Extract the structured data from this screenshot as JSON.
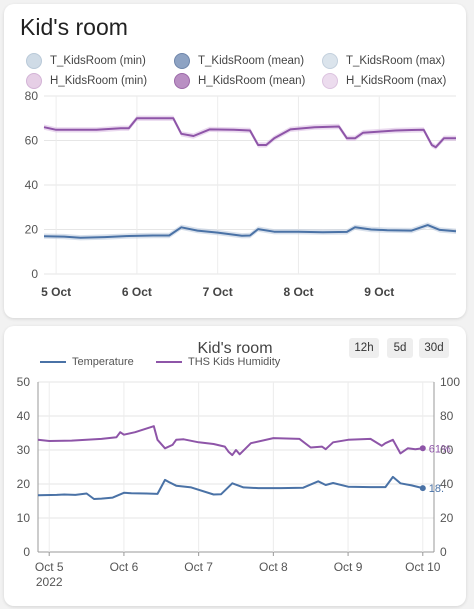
{
  "card1": {
    "title": "Kid's room",
    "legend": [
      {
        "label": "T_KidsRoom (min)",
        "color": "#cfdbe6",
        "border": "#b9c9d8"
      },
      {
        "label": "T_KidsRoom (mean)",
        "color": "#8ea3c3",
        "border": "#6f86aa"
      },
      {
        "label": "T_KidsRoom (max)",
        "color": "#dbe4ec",
        "border": "#c3d0dd"
      },
      {
        "label": "H_KidsRoom (min)",
        "color": "#e6cfe6",
        "border": "#d3b3d6"
      },
      {
        "label": "H_KidsRoom (mean)",
        "color": "#b98fc3",
        "border": "#9c6aa8"
      },
      {
        "label": "H_KidsRoom (max)",
        "color": "#ecdcee",
        "border": "#dcc3df"
      }
    ]
  },
  "card2": {
    "title": "Kid's room",
    "buttons": [
      "12h",
      "5d",
      "30d"
    ],
    "legend": [
      {
        "label": "Temperature",
        "color": "#4a72a6"
      },
      {
        "label": "THS Kids Humidity",
        "color": "#8e55a8"
      }
    ],
    "last_temperature": "18.",
    "last_humidity": "61%"
  },
  "chart_data": [
    {
      "type": "line",
      "x_ticks": [
        "5 Oct",
        "6 Oct",
        "7 Oct",
        "8 Oct",
        "9 Oct"
      ],
      "xlim": [
        4.85,
        9.95
      ],
      "ylim": [
        0,
        80
      ],
      "y_ticks": [
        0,
        20,
        40,
        60,
        80
      ],
      "grid": true,
      "legend_position": "top",
      "series": [
        {
          "name": "T_KidsRoom (mean)",
          "color": "#4a72a6",
          "x": [
            4.85,
            5.1,
            5.3,
            5.6,
            5.9,
            6.2,
            6.4,
            6.55,
            6.75,
            7.0,
            7.3,
            7.4,
            7.5,
            7.7,
            8.0,
            8.3,
            8.6,
            8.7,
            8.9,
            9.1,
            9.4,
            9.6,
            9.75,
            9.95
          ],
          "y": [
            17,
            16.8,
            16.3,
            16.6,
            17.1,
            17.3,
            17.3,
            21,
            19.5,
            18.6,
            17.2,
            17.3,
            20.2,
            19,
            19,
            18.8,
            18.9,
            21,
            20,
            19.7,
            19.5,
            22,
            19.8,
            19.2
          ]
        },
        {
          "name": "H_KidsRoom (mean)",
          "color": "#8e55a8",
          "x": [
            4.85,
            5.0,
            5.2,
            5.5,
            5.8,
            5.9,
            6.0,
            6.2,
            6.35,
            6.4,
            6.45,
            6.55,
            6.7,
            6.9,
            7.2,
            7.4,
            7.5,
            7.6,
            7.7,
            7.9,
            8.2,
            8.5,
            8.6,
            8.7,
            8.8,
            9.0,
            9.2,
            9.4,
            9.55,
            9.65,
            9.7,
            9.8,
            9.9,
            9.95
          ],
          "y": [
            66,
            64.8,
            64.8,
            64.8,
            65.5,
            65.5,
            70,
            70,
            70,
            70,
            70,
            63,
            62,
            65,
            64.8,
            64.5,
            58,
            58,
            61,
            65,
            66,
            66.3,
            61,
            61,
            63.5,
            64,
            64.5,
            64.7,
            64.8,
            58,
            57,
            61,
            61,
            61
          ]
        }
      ]
    },
    {
      "type": "line",
      "x_ticks": [
        "Oct 5",
        "Oct 6",
        "Oct 7",
        "Oct 8",
        "Oct 9",
        "Oct 10"
      ],
      "x_subtick": "2022",
      "xlim": [
        4.85,
        10.15
      ],
      "ylim": [
        0,
        50
      ],
      "y_ticks": [
        0,
        10,
        20,
        30,
        40,
        50
      ],
      "y2lim": [
        0,
        100
      ],
      "y2_ticks": [
        0,
        20,
        40,
        60,
        80,
        100
      ],
      "grid": true,
      "legend_position": "top-left",
      "series": [
        {
          "name": "Temperature",
          "color": "#4a72a6",
          "axis": "left",
          "x": [
            4.85,
            5.1,
            5.2,
            5.35,
            5.5,
            5.6,
            5.7,
            5.85,
            6.0,
            6.1,
            6.3,
            6.45,
            6.55,
            6.6,
            6.7,
            6.9,
            7.2,
            7.3,
            7.45,
            7.6,
            7.8,
            8.1,
            8.4,
            8.6,
            8.7,
            8.8,
            9.0,
            9.3,
            9.5,
            9.6,
            9.7,
            9.85,
            10.0
          ],
          "y": [
            16.7,
            16.8,
            16.9,
            16.8,
            17.2,
            15.6,
            15.7,
            16.0,
            17.4,
            17.3,
            17.2,
            17.1,
            21.2,
            20.6,
            19.5,
            19.0,
            16.9,
            17.0,
            20.2,
            19.0,
            18.8,
            18.8,
            18.9,
            20.8,
            19.7,
            20.3,
            19.2,
            19.1,
            19.1,
            22.1,
            20.2,
            19.6,
            18.8
          ]
        },
        {
          "name": "THS Kids Humidity",
          "color": "#8e55a8",
          "axis": "right",
          "x": [
            4.85,
            5.0,
            5.3,
            5.7,
            5.9,
            5.95,
            6.0,
            6.15,
            6.4,
            6.45,
            6.55,
            6.65,
            6.7,
            6.8,
            7.0,
            7.2,
            7.35,
            7.4,
            7.45,
            7.5,
            7.55,
            7.7,
            8.0,
            8.35,
            8.5,
            8.65,
            8.7,
            8.8,
            9.0,
            9.3,
            9.45,
            9.5,
            9.6,
            9.7,
            9.8,
            9.9,
            10.0
          ],
          "y": [
            66,
            65.3,
            65.5,
            66.5,
            67.5,
            70.5,
            69,
            70.5,
            74,
            66,
            61,
            63,
            66,
            66.3,
            64.5,
            63.5,
            62,
            59,
            57,
            60,
            57.5,
            64,
            67,
            66.5,
            61.5,
            62,
            60.5,
            64.5,
            66,
            66.5,
            62.5,
            64,
            66,
            58,
            61,
            60.5,
            61
          ]
        }
      ]
    }
  ]
}
